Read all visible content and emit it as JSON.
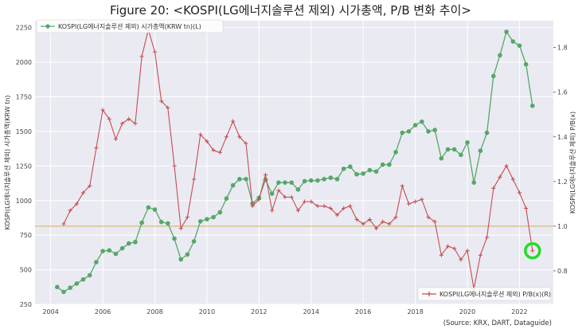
{
  "chart_data": {
    "type": "line",
    "title": "Figure 20: <KOSPI(LG에너지솔루션 제외) 시가총액, P/B 변화 추이>",
    "ylabel_left": "KOSPI(LG에너지솔루션 제외) 시가총액(KRW tn)",
    "ylabel_right": "KOSPI(LG에너지솔루션 제외) P/B(x)",
    "source": "(Source: KRX, DART, Dataguide)",
    "x_ticks": [
      "2004",
      "2006",
      "2008",
      "2010",
      "2012",
      "2014",
      "2016",
      "2018",
      "2020",
      "2022"
    ],
    "x_range": [
      2003.4,
      2023.3
    ],
    "y_left_ticks": [
      "250",
      "500",
      "750",
      "1000",
      "1250",
      "1500",
      "1750",
      "2000",
      "2250"
    ],
    "y_left_range": [
      250,
      2300
    ],
    "y_right_ticks": [
      "0.8",
      "1.0",
      "1.2",
      "1.4",
      "1.6",
      "1.8"
    ],
    "y_right_range": [
      0.65,
      1.92
    ],
    "reference_line_right": 1.0,
    "legend_placement": [
      "top-left",
      "bottom-right"
    ],
    "highlight": {
      "x": 2022.5,
      "y": 0.89,
      "axis": "right",
      "color": "#22dd22"
    },
    "colors": {
      "market_cap": "#55a868",
      "pb": "#c44e52",
      "plot_bg": "#eaeaf2",
      "grid": "#ffffff",
      "reference": "#d9b977"
    },
    "series": [
      {
        "name": "KOSPI(LG에너지솔루션 제외) 시가총액(KRW tn)(L)",
        "axis": "left",
        "marker": "circle",
        "x": [
          2004.25,
          2004.5,
          2004.75,
          2005.0,
          2005.25,
          2005.5,
          2005.75,
          2006.0,
          2006.25,
          2006.5,
          2006.75,
          2007.0,
          2007.25,
          2007.5,
          2007.75,
          2008.0,
          2008.25,
          2008.5,
          2008.75,
          2009.0,
          2009.25,
          2009.5,
          2009.75,
          2010.0,
          2010.25,
          2010.5,
          2010.75,
          2011.0,
          2011.25,
          2011.5,
          2011.75,
          2012.0,
          2012.25,
          2012.5,
          2012.75,
          2013.0,
          2013.25,
          2013.5,
          2013.75,
          2014.0,
          2014.25,
          2014.5,
          2014.75,
          2015.0,
          2015.25,
          2015.5,
          2015.75,
          2016.0,
          2016.25,
          2016.5,
          2016.75,
          2017.0,
          2017.25,
          2017.5,
          2017.75,
          2018.0,
          2018.25,
          2018.5,
          2018.75,
          2019.0,
          2019.25,
          2019.5,
          2019.75,
          2020.0,
          2020.25,
          2020.5,
          2020.75,
          2021.0,
          2021.25,
          2021.5,
          2021.75,
          2022.0,
          2022.25,
          2022.5
        ],
        "values": [
          375,
          340,
          370,
          400,
          430,
          460,
          555,
          635,
          640,
          615,
          655,
          690,
          700,
          840,
          950,
          935,
          845,
          835,
          725,
          575,
          610,
          705,
          850,
          865,
          880,
          915,
          1015,
          1110,
          1155,
          1155,
          980,
          1020,
          1150,
          1050,
          1130,
          1130,
          1130,
          1080,
          1140,
          1145,
          1145,
          1155,
          1165,
          1155,
          1230,
          1245,
          1190,
          1195,
          1220,
          1210,
          1260,
          1260,
          1350,
          1490,
          1500,
          1545,
          1570,
          1500,
          1510,
          1305,
          1370,
          1370,
          1330,
          1420,
          1130,
          1360,
          1490,
          1900,
          2050,
          2220,
          2150,
          2120,
          1985,
          1685
        ]
      },
      {
        "name": "KOSPI(LG에너지솔루션 제외) P/B(x)(R)",
        "axis": "right",
        "marker": "plus",
        "x": [
          2004.5,
          2004.75,
          2005.0,
          2005.25,
          2005.5,
          2005.75,
          2006.0,
          2006.25,
          2006.5,
          2006.75,
          2007.0,
          2007.25,
          2007.5,
          2007.75,
          2008.0,
          2008.25,
          2008.5,
          2008.75,
          2009.0,
          2009.25,
          2009.5,
          2009.75,
          2010.0,
          2010.25,
          2010.5,
          2010.75,
          2011.0,
          2011.25,
          2011.5,
          2011.75,
          2012.0,
          2012.25,
          2012.5,
          2012.75,
          2013.0,
          2013.25,
          2013.5,
          2013.75,
          2014.0,
          2014.25,
          2014.5,
          2014.75,
          2015.0,
          2015.25,
          2015.5,
          2015.75,
          2016.0,
          2016.25,
          2016.5,
          2016.75,
          2017.0,
          2017.25,
          2017.5,
          2017.75,
          2018.0,
          2018.25,
          2018.5,
          2018.75,
          2019.0,
          2019.25,
          2019.5,
          2019.75,
          2020.0,
          2020.25,
          2020.5,
          2020.75,
          2021.0,
          2021.25,
          2021.5,
          2021.75,
          2022.0,
          2022.25,
          2022.5
        ],
        "values": [
          1.01,
          1.07,
          1.1,
          1.15,
          1.18,
          1.35,
          1.52,
          1.48,
          1.39,
          1.46,
          1.48,
          1.46,
          1.76,
          1.88,
          1.78,
          1.56,
          1.53,
          1.27,
          0.99,
          1.04,
          1.21,
          1.41,
          1.38,
          1.34,
          1.33,
          1.4,
          1.47,
          1.4,
          1.37,
          1.09,
          1.12,
          1.23,
          1.07,
          1.16,
          1.13,
          1.13,
          1.07,
          1.11,
          1.11,
          1.09,
          1.09,
          1.08,
          1.05,
          1.08,
          1.09,
          1.03,
          1.01,
          1.03,
          0.99,
          1.02,
          1.01,
          1.04,
          1.18,
          1.1,
          1.11,
          1.12,
          1.04,
          1.02,
          0.87,
          0.91,
          0.9,
          0.85,
          0.89,
          0.72,
          0.87,
          0.95,
          1.17,
          1.22,
          1.27,
          1.21,
          1.15,
          1.08,
          0.89
        ]
      }
    ]
  }
}
